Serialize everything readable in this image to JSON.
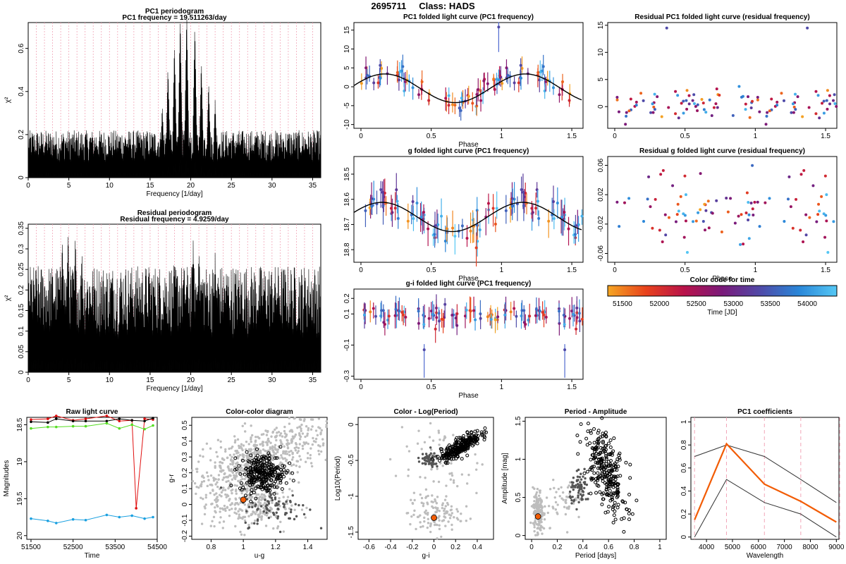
{
  "header": {
    "id": "2695711",
    "class_label": "Class: HADS"
  },
  "colors": {
    "time_palette": [
      "#f5a623",
      "#e8421c",
      "#b8124a",
      "#7a1a7a",
      "#4f4aa8",
      "#2a86d8",
      "#55c8f5"
    ],
    "highlight": "#f25c05",
    "line_red": "#e01010",
    "line_green": "#55dd22",
    "line_blue": "#1aa0e0",
    "bg_gray": "#bdbdbd",
    "mid_gray": "#555555"
  },
  "chart_data": [
    {
      "id": "pc1_periodogram",
      "type": "line",
      "title": "PC1 periodogram",
      "subtitle": "PC1 frequency = 19.511263/day",
      "xlabel": "Frequency [1/day]",
      "ylabel": "χ²",
      "xlim": [
        0,
        36
      ],
      "ylim": [
        0,
        0.72
      ],
      "xticks": [
        0,
        5,
        10,
        15,
        20,
        25,
        30,
        35
      ],
      "yticks": [
        0,
        0.2,
        0.4,
        0.6
      ],
      "peaks": [
        {
          "x": 16.5,
          "y": 0.34
        },
        {
          "x": 17.2,
          "y": 0.52
        },
        {
          "x": 18.0,
          "y": 0.63
        },
        {
          "x": 18.7,
          "y": 0.76
        },
        {
          "x": 19.5,
          "y": 0.78
        },
        {
          "x": 20.5,
          "y": 0.72
        },
        {
          "x": 21.3,
          "y": 0.55
        },
        {
          "x": 22.2,
          "y": 0.45
        },
        {
          "x": 23.0,
          "y": 0.36
        }
      ],
      "noise_level": 0.22
    },
    {
      "id": "residual_periodogram",
      "type": "line",
      "title": "Residual periodogram",
      "subtitle": "Residual frequency = 4.9259/day",
      "xlabel": "Frequency [1/day]",
      "ylabel": "χ²",
      "xlim": [
        0,
        36
      ],
      "ylim": [
        0,
        0.36
      ],
      "xticks": [
        0,
        5,
        10,
        15,
        20,
        25,
        30,
        35
      ],
      "yticks": [
        0,
        0.05,
        0.1,
        0.15,
        0.2,
        0.25,
        0.3,
        0.35
      ],
      "peaks": [
        {
          "x": 4.2,
          "y": 0.33
        },
        {
          "x": 4.9,
          "y": 0.35
        },
        {
          "x": 5.8,
          "y": 0.34
        },
        {
          "x": 6.6,
          "y": 0.3
        },
        {
          "x": 20.3,
          "y": 0.32
        },
        {
          "x": 21.0,
          "y": 0.3
        },
        {
          "x": 23.0,
          "y": 0.29
        }
      ],
      "noise_level": 0.26
    },
    {
      "id": "pc1_folded",
      "type": "scatter",
      "title": "PC1 folded light curve (PC1 frequency)",
      "xlabel": "Phase",
      "ylabel": "",
      "xlim": [
        -0.05,
        1.58
      ],
      "ylim": [
        -11,
        17
      ],
      "xticks": [
        0,
        0.5,
        1,
        1.5
      ],
      "yticks": [
        -10,
        -5,
        0,
        5,
        10,
        15
      ],
      "model": {
        "mean": -0.4,
        "amplitude": 3.8,
        "phase_of_max": 0.17
      },
      "scatter_sd": 1.6,
      "outliers": [
        [
          0.98,
          15.8
        ]
      ],
      "error_bar": 2.2
    },
    {
      "id": "residual_pc1_folded",
      "type": "scatter",
      "title": "Residual PC1 folded light curve (residual frequency)",
      "xlabel": "",
      "ylabel": "",
      "xlim": [
        -0.05,
        1.58
      ],
      "ylim": [
        -4,
        15.5
      ],
      "xticks": [
        0,
        0.5,
        1,
        1.5
      ],
      "yticks": [
        0,
        5,
        10,
        15
      ],
      "scatter_sd": 1.4,
      "outliers": [
        [
          0.37,
          14.5
        ],
        [
          1.37,
          14.5
        ]
      ]
    },
    {
      "id": "g_folded",
      "type": "scatter",
      "title": "g folded light curve (PC1 frequency)",
      "xlabel": "Phase",
      "ylabel": "",
      "xlim": [
        -0.05,
        1.58
      ],
      "ylim": [
        18.85,
        18.43
      ],
      "xticks": [
        0,
        0.5,
        1,
        1.5
      ],
      "yticks": [
        18.5,
        18.6,
        18.7,
        18.8
      ],
      "model": {
        "mean": 18.67,
        "amplitude": 0.058,
        "phase_of_min": 0.65
      },
      "scatter_sd": 0.03,
      "error_bar": 0.05
    },
    {
      "id": "residual_g_folded",
      "type": "scatter",
      "title": "Residual g folded light curve (residual frequency)",
      "xlabel": "Phase",
      "ylabel": "",
      "xlim": [
        -0.05,
        1.58
      ],
      "ylim": [
        -0.072,
        0.072
      ],
      "xticks": [
        0,
        0.5,
        1,
        1.5
      ],
      "yticks": [
        -0.06,
        -0.02,
        0.02,
        0.06
      ],
      "scatter_sd": 0.028
    },
    {
      "id": "gi_folded",
      "type": "scatter",
      "title": "g-i folded light curve (PC1 frequency)",
      "xlabel": "Phase",
      "ylabel": "",
      "xlim": [
        -0.05,
        1.58
      ],
      "ylim": [
        -0.32,
        0.26
      ],
      "xticks": [
        0,
        0.5,
        1,
        1.5
      ],
      "yticks": [
        -0.3,
        -0.1,
        0.1,
        0.2
      ],
      "mean": 0.09,
      "scatter_sd": 0.03,
      "outliers": [
        [
          0.45,
          -0.13
        ],
        [
          1.45,
          -0.13
        ]
      ],
      "error_bar": 0.06
    },
    {
      "id": "color_key",
      "type": "heatmap",
      "title": "Color code for time",
      "xlabel": "Time [JD]",
      "xlim": [
        51300,
        54400
      ],
      "xticks": [
        51500,
        52000,
        52500,
        53000,
        53500,
        54000
      ]
    },
    {
      "id": "raw_light_curve",
      "type": "line",
      "title": "Raw light curve",
      "xlabel": "Time",
      "ylabel": "Magnitudes",
      "xlim": [
        51400,
        54500
      ],
      "ylim": [
        20.05,
        18.4
      ],
      "xticks": [
        51500,
        52500,
        53500,
        54500
      ],
      "yticks": [
        18.5,
        19,
        19.5,
        20
      ],
      "series": [
        {
          "color": "#e01010",
          "values": [
            [
              51500,
              18.43
            ],
            [
              51900,
              18.42
            ],
            [
              52100,
              18.38
            ],
            [
              52500,
              18.44
            ],
            [
              52800,
              18.42
            ],
            [
              53300,
              18.38
            ],
            [
              53600,
              18.45
            ],
            [
              53900,
              18.44
            ],
            [
              54000,
              19.63
            ],
            [
              54200,
              18.42
            ],
            [
              54400,
              18.43
            ]
          ]
        },
        {
          "color": "#000000",
          "values": [
            [
              51500,
              18.46
            ],
            [
              51900,
              18.47
            ],
            [
              52100,
              18.42
            ],
            [
              52500,
              18.45
            ],
            [
              52800,
              18.45
            ],
            [
              53300,
              18.45
            ],
            [
              53600,
              18.42
            ],
            [
              53900,
              18.44
            ],
            [
              54200,
              18.45
            ],
            [
              54400,
              18.41
            ]
          ]
        },
        {
          "color": "#55dd22",
          "values": [
            [
              51500,
              18.55
            ],
            [
              51900,
              18.53
            ],
            [
              52100,
              18.53
            ],
            [
              52500,
              18.52
            ],
            [
              52800,
              18.52
            ],
            [
              53300,
              18.48
            ],
            [
              53600,
              18.55
            ],
            [
              53900,
              18.5
            ],
            [
              54200,
              18.56
            ],
            [
              54400,
              18.51
            ]
          ]
        },
        {
          "color": "#1aa0e0",
          "values": [
            [
              51500,
              19.77
            ],
            [
              51900,
              19.8
            ],
            [
              52100,
              19.83
            ],
            [
              52500,
              19.78
            ],
            [
              52800,
              19.79
            ],
            [
              53300,
              19.72
            ],
            [
              53600,
              19.75
            ],
            [
              53900,
              19.73
            ],
            [
              54200,
              19.77
            ],
            [
              54400,
              19.75
            ]
          ]
        }
      ]
    },
    {
      "id": "color_color",
      "type": "scatter",
      "title": "Color-color diagram",
      "xlabel": "u-g",
      "ylabel": "g-r",
      "xlim": [
        0.68,
        1.52
      ],
      "ylim": [
        -0.22,
        0.55
      ],
      "xticks": [
        0.8,
        1.0,
        1.2,
        1.4
      ],
      "yticks": [
        -0.2,
        -0.1,
        0,
        0.1,
        0.2,
        0.3,
        0.4,
        0.5
      ],
      "highlight": [
        1.0,
        0.03
      ]
    },
    {
      "id": "color_logperiod",
      "type": "scatter",
      "title": "Color - Log(Period)",
      "xlabel": "g-i",
      "ylabel": "Log10(Period)",
      "xlim": [
        -0.7,
        0.55
      ],
      "ylim": [
        -1.6,
        0.1
      ],
      "xticks": [
        -0.6,
        -0.4,
        -0.2,
        0,
        0.2,
        0.4
      ],
      "yticks": [
        -1.5,
        -1,
        -0.5,
        0
      ],
      "highlight": [
        0.0,
        -1.3
      ]
    },
    {
      "id": "period_amplitude",
      "type": "scatter",
      "title": "Period - Amplitude",
      "xlabel": "Period [days]",
      "ylabel": "Amplitude [mag]",
      "xlim": [
        -0.05,
        1.05
      ],
      "ylim": [
        -0.05,
        1.55
      ],
      "xticks": [
        0,
        0.2,
        0.4,
        0.6,
        0.8,
        1.0
      ],
      "yticks": [
        0,
        0.5,
        1,
        1.5
      ],
      "highlight": [
        0.05,
        0.25
      ]
    },
    {
      "id": "pc1_coefficients",
      "type": "line",
      "title": "PC1 coefficients",
      "xlabel": "Wavelength",
      "ylabel": "",
      "xlim": [
        3400,
        9100
      ],
      "ylim": [
        -0.02,
        1.04
      ],
      "xticks": [
        4000,
        5000,
        6000,
        7000,
        8000,
        9000
      ],
      "yticks": [
        0,
        0.2,
        0.4,
        0.6,
        0.8,
        1.0
      ],
      "vlines": [
        3540,
        4770,
        6230,
        7630,
        9130
      ],
      "series": [
        {
          "name": "",
          "values": [
            [
              3540,
              0.15
            ],
            [
              4770,
              0.81
            ],
            [
              6230,
              0.46
            ],
            [
              7630,
              0.31
            ],
            [
              9000,
              0.13
            ]
          ],
          "color": "#f25c05"
        },
        {
          "name": "",
          "values": [
            [
              3540,
              0.7
            ],
            [
              4770,
              0.8
            ],
            [
              6230,
              0.7
            ],
            [
              7630,
              0.5
            ],
            [
              9000,
              0.3
            ]
          ],
          "color": "#333333"
        },
        {
          "name": "",
          "values": [
            [
              3540,
              0.0
            ],
            [
              4770,
              0.5
            ],
            [
              6230,
              0.3
            ],
            [
              7630,
              0.2
            ],
            [
              9000,
              0.0
            ]
          ],
          "color": "#333333"
        }
      ]
    }
  ]
}
